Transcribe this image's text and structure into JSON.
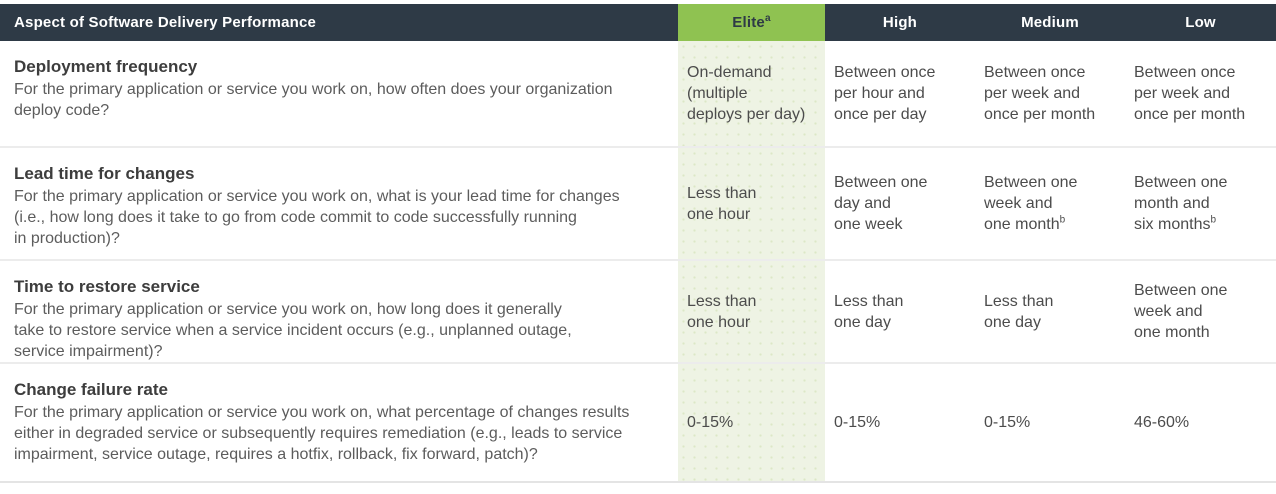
{
  "table": {
    "aspect_header": "Aspect of Software Delivery Performance",
    "columns": [
      {
        "label": "Elite",
        "sup": "a"
      },
      {
        "label": "High",
        "sup": ""
      },
      {
        "label": "Medium",
        "sup": ""
      },
      {
        "label": "Low",
        "sup": ""
      }
    ],
    "rows": [
      {
        "title": "Deployment frequency",
        "description": "For the primary application or service you work on, how often does your organization\ndeploy code?",
        "cells": [
          {
            "text": "On-demand\n(multiple\ndeploys per day)",
            "sup": ""
          },
          {
            "text": "Between once\nper hour and\nonce per day",
            "sup": ""
          },
          {
            "text": "Between once\nper week and\nonce per month",
            "sup": ""
          },
          {
            "text": "Between once\nper week and\nonce per month",
            "sup": ""
          }
        ]
      },
      {
        "title": "Lead time for changes",
        "description": "For the primary application or service you work on, what is your lead time for changes\n(i.e., how long does it take to go from code commit to code successfully running\nin production)?",
        "cells": [
          {
            "text": "Less than\none hour",
            "sup": ""
          },
          {
            "text": "Between one\nday and\none week",
            "sup": ""
          },
          {
            "text": "Between one\nweek and\none month",
            "sup": "b"
          },
          {
            "text": "Between one\nmonth and\nsix months",
            "sup": "b"
          }
        ]
      },
      {
        "title": "Time to restore service",
        "description": "For the primary application or service you work on, how long does it generally\ntake to restore service when a service incident occurs (e.g., unplanned outage,\nservice impairment)?",
        "cells": [
          {
            "text": "Less than\none hour",
            "sup": ""
          },
          {
            "text": "Less than\none day",
            "sup": ""
          },
          {
            "text": "Less than\none day",
            "sup": ""
          },
          {
            "text": "Between one\nweek and\none month",
            "sup": ""
          }
        ]
      },
      {
        "title": "Change failure rate",
        "description": "For the primary application or service you work on, what percentage of changes results\neither in degraded service or subsequently requires remediation (e.g., leads to service\nimpairment, service outage, requires a hotfix, rollback, fix forward, patch)?",
        "cells": [
          {
            "text": "0-15%",
            "sup": ""
          },
          {
            "text": "0-15%",
            "sup": ""
          },
          {
            "text": "0-15%",
            "sup": ""
          },
          {
            "text": "46-60%",
            "sup": ""
          }
        ]
      }
    ]
  },
  "colors": {
    "header_navy": "#2E3A46",
    "elite_green": "#8FC251",
    "elite_column_bg": "#EEF3E4",
    "separator": "#ECECEC",
    "title_text": "#3D3D3D",
    "body_text": "#5C5C5C",
    "cell_text": "#4C4C4C"
  }
}
